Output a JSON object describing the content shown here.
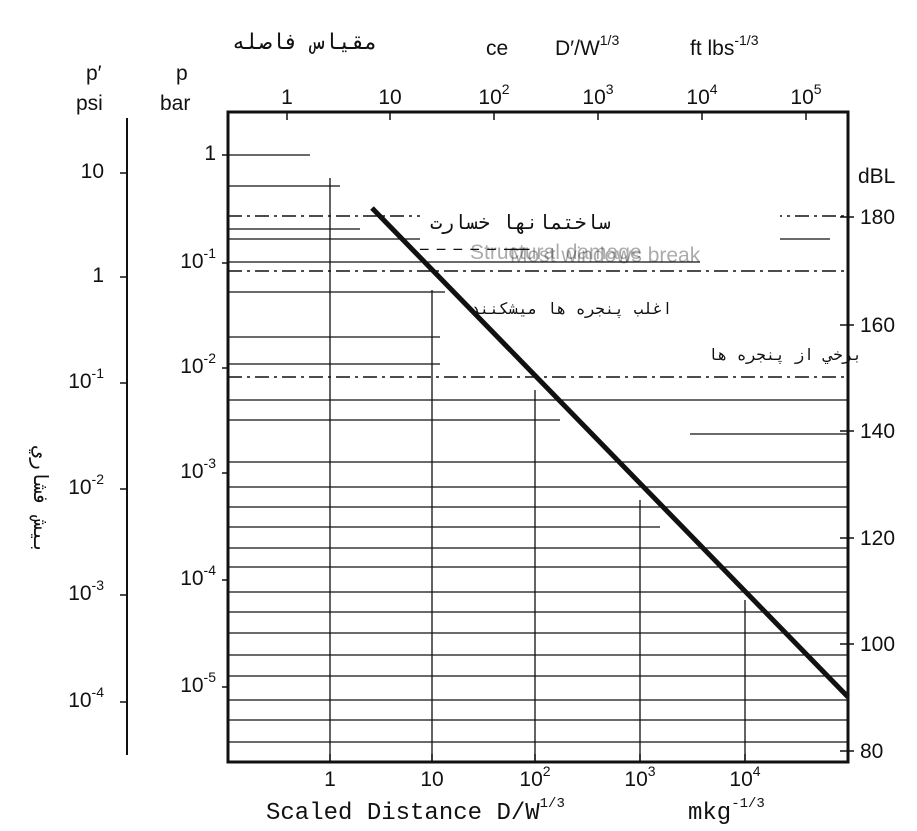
{
  "chart_data": {
    "type": "line",
    "title": "مقياس فاصله",
    "scale_text_fragment": "ce",
    "top_axis": {
      "label_main": "D′/W",
      "label_exp": "1/3",
      "unit_main": "ft lbs",
      "unit_exp": "-1/3",
      "ticks": [
        {
          "base": "1",
          "exp": ""
        },
        {
          "base": "10",
          "exp": ""
        },
        {
          "base": "10",
          "exp": "2"
        },
        {
          "base": "10",
          "exp": "3"
        },
        {
          "base": "10",
          "exp": "4"
        },
        {
          "base": "10",
          "exp": "5"
        }
      ]
    },
    "bottom_axis": {
      "label_main": "Scaled Distance  D/W",
      "label_exp": "1/3",
      "unit_main": "mkg",
      "unit_exp": "-1/3",
      "ticks": [
        {
          "base": "1",
          "exp": ""
        },
        {
          "base": "10",
          "exp": ""
        },
        {
          "base": "10",
          "exp": "2"
        },
        {
          "base": "10",
          "exp": "3"
        },
        {
          "base": "10",
          "exp": "4"
        }
      ]
    },
    "psi_axis": {
      "title_line1": "p′",
      "title_line2": "psi",
      "ticks": [
        {
          "base": "10",
          "exp": ""
        },
        {
          "base": "1",
          "exp": ""
        },
        {
          "base": "10",
          "exp": "-1"
        },
        {
          "base": "10",
          "exp": "-2"
        },
        {
          "base": "10",
          "exp": "-3"
        },
        {
          "base": "10",
          "exp": "-4"
        }
      ]
    },
    "bar_axis": {
      "title_line1": "p",
      "title_line2": "bar",
      "ticks": [
        {
          "base": "1",
          "exp": ""
        },
        {
          "base": "10",
          "exp": "-1"
        },
        {
          "base": "10",
          "exp": "-2"
        },
        {
          "base": "10",
          "exp": "-3"
        },
        {
          "base": "10",
          "exp": "-4"
        },
        {
          "base": "10",
          "exp": "-5"
        }
      ]
    },
    "db_axis": {
      "title": "dBL",
      "ticks": [
        "180",
        "160",
        "140",
        "120",
        "100",
        "80"
      ]
    },
    "y_title": "بيش فشاري",
    "series": [
      {
        "x": [
          3,
          90000
        ],
        "y": [
          0.35,
          1.8e-05
        ]
      }
    ],
    "threshold_lines": [
      {
        "label": "ساختمانها خسارت",
        "overlap_text": "Structural damage",
        "p_bar": 0.35
      },
      {
        "label": "اغلب پنجره ها ميشكنند",
        "overlap_text": "Most windows break",
        "p_bar": 0.09
      },
      {
        "label": "برخي از پنجره ها",
        "overlap_text": "",
        "p_bar": 0.0095
      }
    ],
    "legend_partial_text": "ـــ ـ ـ ـ ـ ـ",
    "ylim_bar": [
      2e-06,
      1.5
    ],
    "xlim": [
      0.2,
      80000
    ],
    "grid": "partial"
  }
}
